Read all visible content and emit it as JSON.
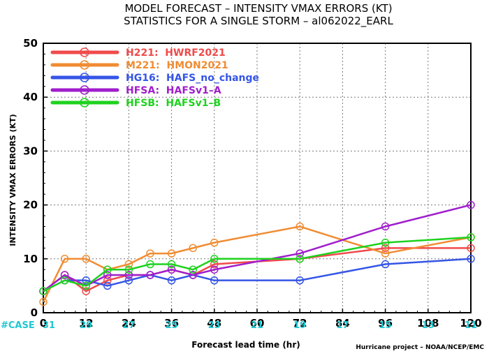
{
  "chart_data": {
    "type": "line",
    "title": "MODEL FORECAST – INTENSITY VMAX ERRORS (KT)",
    "subtitle": "STATISTICS FOR A SINGLE STORM – al062022_EARL",
    "xlabel": "Forecast lead time (hr)",
    "ylabel": "INTENSITY VMAX ERRORS (KT)",
    "credit": "Hurricane project – NOAA/NCEP/EMC",
    "xlim": [
      0,
      120
    ],
    "ylim": [
      0,
      50
    ],
    "xticks": [
      0,
      12,
      24,
      36,
      48,
      60,
      72,
      84,
      96,
      108,
      120
    ],
    "yticks": [
      0,
      10,
      20,
      30,
      40,
      50
    ],
    "grid": true,
    "legend_position": "top-left",
    "x": [
      0,
      6,
      12,
      18,
      24,
      30,
      36,
      42,
      48,
      72,
      96,
      120
    ],
    "series": [
      {
        "name": "H221:  HWRF2021",
        "color": "#f04a4a",
        "values": [
          4,
          7,
          4,
          6,
          7,
          7,
          8,
          7,
          9,
          10,
          12,
          12
        ]
      },
      {
        "name": "M221:  HMON2021",
        "color": "#f08c32",
        "values": [
          2,
          10,
          10,
          8,
          9,
          11,
          11,
          12,
          13,
          16,
          11,
          14
        ]
      },
      {
        "name": "HG16:  HAFS_no_change",
        "color": "#3455e6",
        "values": [
          4,
          6,
          6,
          5,
          6,
          7,
          6,
          7,
          6,
          6,
          9,
          10
        ]
      },
      {
        "name": "HFSA:  HAFSv1–A",
        "color": "#a01ecc",
        "values": [
          4,
          7,
          5,
          7,
          7,
          7,
          8,
          7,
          8,
          11,
          16,
          20
        ]
      },
      {
        "name": "HFSB:  HAFSv1–B",
        "color": "#1ed21e",
        "values": [
          4,
          6,
          5,
          8,
          8,
          9,
          9,
          8,
          10,
          10,
          13,
          14
        ]
      }
    ],
    "case_label": "#CASE",
    "cases": [
      {
        "x": 0,
        "label": "31"
      },
      {
        "x": 12,
        "label": "29"
      },
      {
        "x": 24,
        "label": "27"
      },
      {
        "x": 36,
        "label": "25"
      },
      {
        "x": 48,
        "label": "23"
      },
      {
        "x": 60,
        "label": "21"
      },
      {
        "x": 72,
        "label": "19"
      },
      {
        "x": 84,
        "label": "17"
      },
      {
        "x": 96,
        "label": "15"
      },
      {
        "x": 108,
        "label": "13"
      },
      {
        "x": 120,
        "label": "11"
      }
    ]
  }
}
